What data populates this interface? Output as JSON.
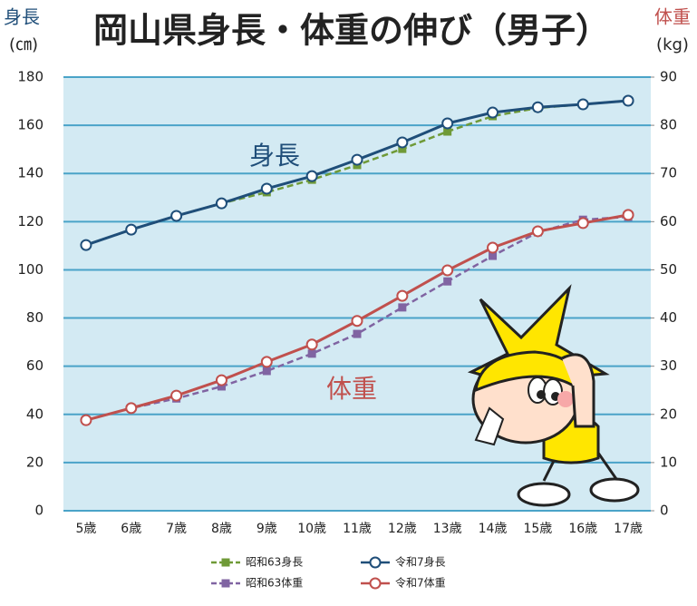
{
  "chart_data": {
    "type": "line",
    "title": "岡山県身長・体重の伸び（男子）",
    "ylabel": "身長",
    "ylabel_unit": "(㎝)",
    "ylabel_color": "#1f4e79",
    "y2label": "体重",
    "y2label_unit": "(kg)",
    "y2label_color": "#c0504d",
    "annotations": [
      {
        "text": "身長",
        "color": "#1f4e79"
      },
      {
        "text": "体重",
        "color": "#c0504d"
      }
    ],
    "categories": [
      "5歳",
      "6歳",
      "7歳",
      "8歳",
      "9歳",
      "10歳",
      "11歳",
      "12歳",
      "13歳",
      "14歳",
      "15歳",
      "16歳",
      "17歳"
    ],
    "series": [
      {
        "name": "昭和63身長",
        "color": "#6f9a37",
        "line_style": "dashed",
        "marker": "square",
        "values": [
          110.3,
          116.7,
          122.4,
          127.6,
          132.2,
          137.4,
          143.5,
          150.2,
          157.4,
          163.8,
          167.2,
          168.7,
          170.2
        ]
      },
      {
        "name": "令和7身長",
        "color": "#1f4e79",
        "line_style": "solid",
        "marker": "circle",
        "values": [
          110.3,
          116.7,
          122.4,
          127.6,
          133.7,
          138.9,
          145.7,
          152.9,
          160.8,
          165.3,
          167.5,
          168.7,
          170.2
        ]
      },
      {
        "name": "昭和63体重",
        "color": "#8064a2",
        "line_style": "dashed",
        "marker": "square",
        "axis": "y2",
        "values": [
          18.8,
          21.3,
          23.3,
          25.8,
          29.0,
          32.6,
          36.7,
          42.2,
          47.6,
          52.9,
          57.8,
          60.4,
          61.0
        ]
      },
      {
        "name": "令和7体重",
        "color": "#c0504d",
        "line_style": "solid",
        "marker": "circle",
        "axis": "y2",
        "values": [
          18.8,
          21.3,
          23.9,
          27.1,
          30.9,
          34.5,
          39.4,
          44.6,
          49.9,
          54.6,
          58.0,
          59.7,
          61.4
        ]
      }
    ],
    "ylim": [
      0,
      180
    ],
    "yticks": [
      0,
      20,
      40,
      60,
      80,
      100,
      120,
      140,
      160,
      180
    ],
    "y2lim": [
      0,
      90
    ],
    "y2ticks": [
      0,
      10,
      20,
      30,
      40,
      50,
      60,
      70,
      80,
      90
    ],
    "grid": true
  }
}
